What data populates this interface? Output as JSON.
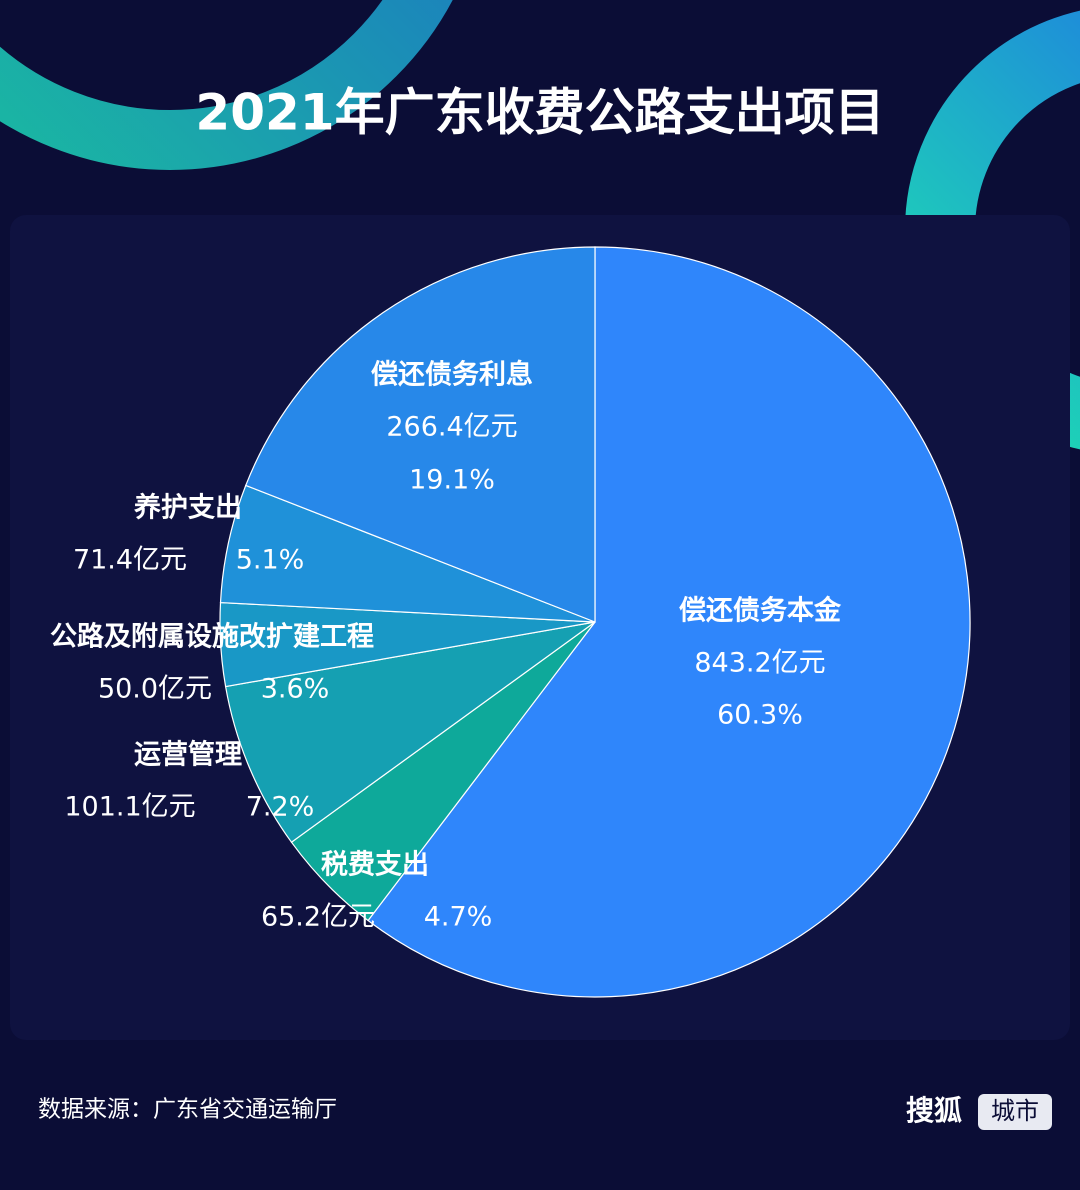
{
  "chart_data": {
    "type": "pie",
    "title": "2021年广东收费公路支出项目",
    "categories": [
      "偿还债务本金",
      "税费支出",
      "运营管理",
      "公路及附属设施改扩建工程",
      "养护支出",
      "偿还债务利息"
    ],
    "values": [
      843.2,
      65.2,
      101.1,
      50.0,
      71.4,
      266.4
    ],
    "value_labels": [
      "843.2亿元",
      "65.2亿元",
      "101.1亿元",
      "50.0亿元",
      "71.4亿元",
      "266.4亿元"
    ],
    "percents": [
      60.3,
      4.7,
      7.2,
      3.6,
      5.1,
      19.1
    ],
    "percent_labels": [
      "60.3%",
      "4.7%",
      "7.2%",
      "3.6%",
      "5.1%",
      "19.1%"
    ],
    "colors": [
      "#2f86fb",
      "#0ea99a",
      "#15a0b2",
      "#1998c6",
      "#1f91d9",
      "#2788e9"
    ]
  },
  "source": "数据来源：广东省交通运输厅",
  "logo": {
    "brand": "搜狐",
    "badge": "城市"
  }
}
